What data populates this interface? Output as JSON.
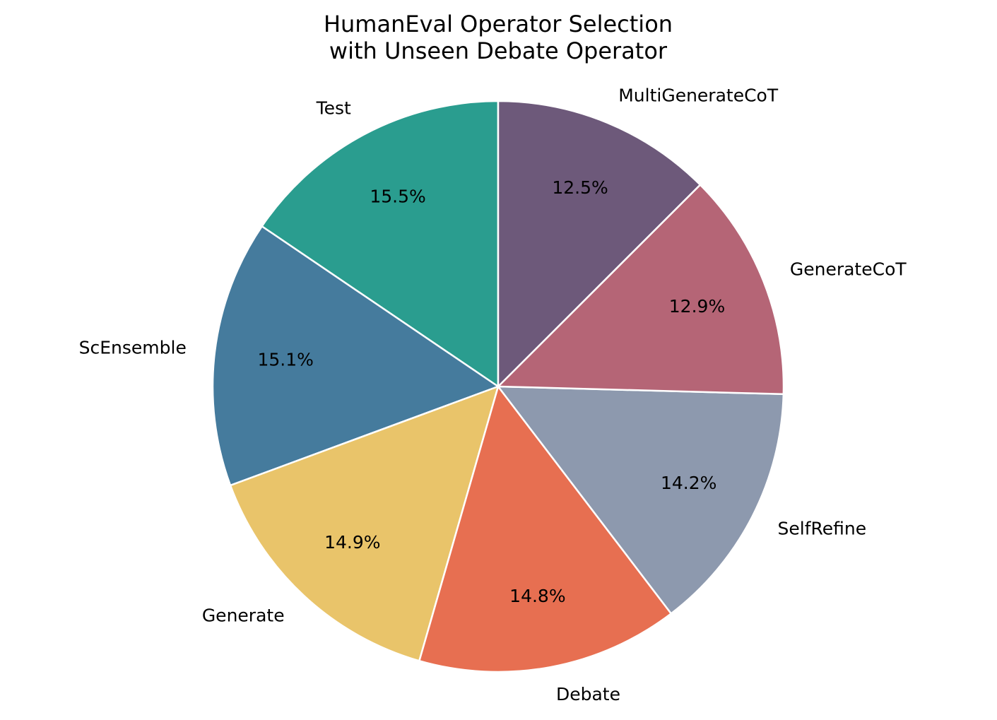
{
  "chart_data": {
    "type": "pie",
    "title": [
      "HumanEval Operator Selection",
      "with Unseen Debate Operator"
    ],
    "categories": [
      "Test",
      "ScEnsemble",
      "Generate",
      "Debate",
      "SelfRefine",
      "GenerateCoT",
      "MultiGenerateCoT"
    ],
    "values": [
      15.5,
      15.1,
      14.9,
      14.8,
      14.2,
      12.9,
      12.5
    ],
    "value_labels": [
      "15.5%",
      "15.1%",
      "14.9%",
      "14.8%",
      "14.2%",
      "12.9%",
      "12.5%"
    ],
    "colors": [
      "#2a9d8f",
      "#457b9d",
      "#e9c46a",
      "#e76f51",
      "#8d99ae",
      "#b56576",
      "#6d597a"
    ]
  }
}
